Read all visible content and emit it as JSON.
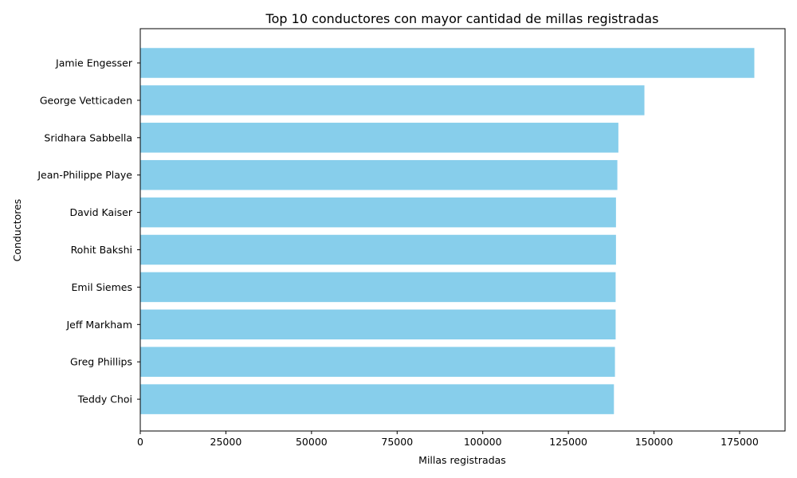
{
  "chart_data": {
    "type": "bar",
    "orientation": "horizontal",
    "title": "Top 10 conductores con mayor cantidad de millas registradas",
    "xlabel": "Millas registradas",
    "ylabel": "Conductores",
    "categories": [
      "Jamie Engesser",
      "George Vetticaden",
      "Sridhara Sabbella",
      "Jean-Philippe Playe",
      "David Kaiser",
      "Rohit Bakshi",
      "Emil Siemes",
      "Jeff Markham",
      "Greg Phillips",
      "Teddy Choi"
    ],
    "values": [
      179300,
      147200,
      139600,
      139300,
      138900,
      138900,
      138800,
      138800,
      138600,
      138300
    ],
    "xlim": [
      0,
      188265
    ],
    "xticks": [
      0,
      25000,
      50000,
      75000,
      100000,
      125000,
      150000,
      175000
    ],
    "grid": false,
    "bar_color": "#87ceeb"
  }
}
